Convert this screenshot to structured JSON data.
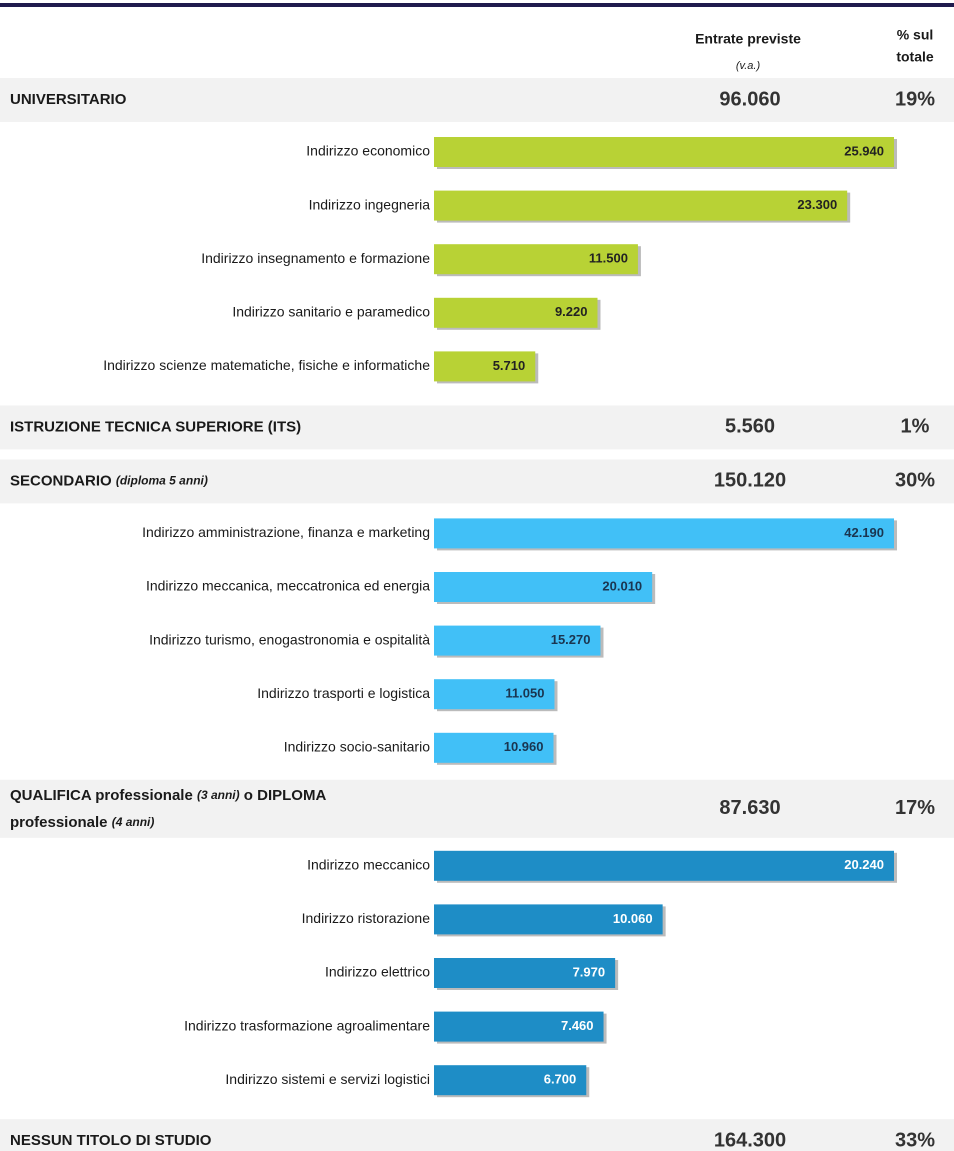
{
  "header": {
    "col1": "Entrate previste",
    "col1_sub": "(v.a.)",
    "col2_line1": "% sul",
    "col2_line2": "totale"
  },
  "sections": [
    {
      "title": [
        {
          "text": "UNIVERSITARIO",
          "italic": false
        }
      ],
      "total": "96.060",
      "percent": "19%",
      "color": "#b8d235",
      "value_color": "#222",
      "bars": [
        {
          "label": "Indirizzo economico",
          "value": 25940,
          "value_label": "25.940"
        },
        {
          "label": "Indirizzo ingegneria",
          "value": 23300,
          "value_label": "23.300"
        },
        {
          "label": "Indirizzo insegnamento e formazione",
          "value": 11500,
          "value_label": "11.500"
        },
        {
          "label": "Indirizzo sanitario e paramedico",
          "value": 9220,
          "value_label": "9.220"
        },
        {
          "label": "Indirizzo scienze matematiche, fisiche e informatiche",
          "value": 5710,
          "value_label": "5.710"
        }
      ]
    },
    {
      "title": [
        {
          "text": "ISTRUZIONE TECNICA SUPERIORE  (ITS)",
          "italic": false
        }
      ],
      "total": "5.560",
      "percent": "1%",
      "bars": []
    },
    {
      "title": [
        {
          "text": "SECONDARIO ",
          "italic": false
        },
        {
          "text": "(diploma 5 anni)",
          "italic": true
        }
      ],
      "total": "150.120",
      "percent": "30%",
      "color": "#41c0f7",
      "value_color": "#1a3550",
      "bars": [
        {
          "label": "Indirizzo amministrazione, finanza e marketing",
          "value": 42190,
          "value_label": "42.190"
        },
        {
          "label": "Indirizzo meccanica, meccatronica ed energia",
          "value": 20010,
          "value_label": "20.010"
        },
        {
          "label": "Indirizzo turismo, enogastronomia e ospitalità",
          "value": 15270,
          "value_label": "15.270"
        },
        {
          "label": "Indirizzo trasporti e logistica",
          "value": 11050,
          "value_label": "11.050"
        },
        {
          "label": "Indirizzo socio-sanitario",
          "value": 10960,
          "value_label": "10.960"
        }
      ]
    },
    {
      "title": [
        {
          "text": "QUALIFICA professionale ",
          "italic": false
        },
        {
          "text": "(3 anni)",
          "italic": true
        },
        {
          "text": "  o DIPLOMA",
          "italic": false
        },
        {
          "text": "professionale ",
          "italic": false,
          "newline": true
        },
        {
          "text": "(4 anni)",
          "italic": true
        }
      ],
      "total": "87.630",
      "percent": "17%",
      "color": "#1e8dc6",
      "value_color": "#fff",
      "bars": [
        {
          "label": "Indirizzo meccanico",
          "value": 20240,
          "value_label": "20.240"
        },
        {
          "label": "Indirizzo ristorazione",
          "value": 10060,
          "value_label": "10.060"
        },
        {
          "label": "Indirizzo elettrico",
          "value": 7970,
          "value_label": "7.970"
        },
        {
          "label": "Indirizzo trasformazione agroalimentare",
          "value": 7460,
          "value_label": "7.460"
        },
        {
          "label": "Indirizzo sistemi e servizi logistici",
          "value": 6700,
          "value_label": "6.700"
        }
      ]
    },
    {
      "title": [
        {
          "text": "NESSUN TITOLO DI STUDIO",
          "italic": false
        }
      ],
      "total": "164.300",
      "percent": "33%",
      "bars": []
    }
  ]
}
